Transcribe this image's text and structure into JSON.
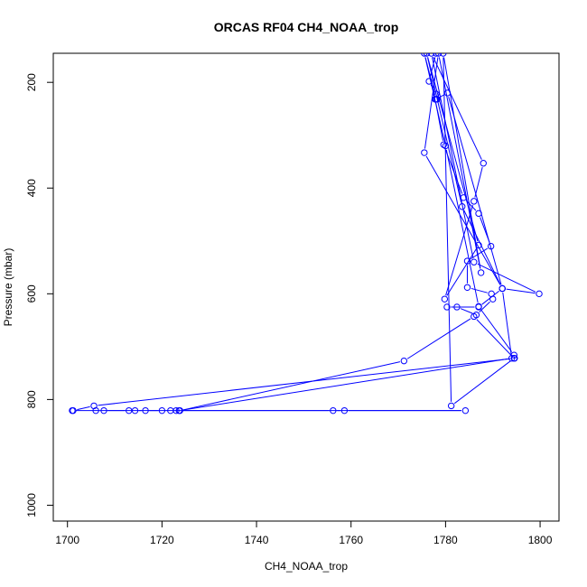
{
  "chart_data": {
    "type": "line",
    "title": "ORCAS RF04 CH4_NOAA_trop",
    "xlabel": "CH4_NOAA_trop",
    "ylabel": "Pressure (mbar)",
    "xlim": [
      1697,
      1804
    ],
    "ylim": [
      1030,
      145
    ],
    "y_reversed": true,
    "x_ticks": [
      1700,
      1720,
      1740,
      1760,
      1780,
      1800
    ],
    "y_ticks": [
      200,
      400,
      600,
      800,
      1000
    ],
    "markers": "open-circle",
    "color": "#0000ff",
    "series": [
      {
        "points": [
          [
            1778.0,
            145
          ],
          [
            1776.5,
            198
          ],
          [
            1778.0,
            222
          ],
          [
            1778.2,
            232
          ],
          [
            1777.8,
            232
          ],
          [
            1779.6,
            318
          ],
          [
            1783.8,
            418
          ],
          [
            1787.0,
            448
          ],
          [
            1789.6,
            510
          ],
          [
            1784.6,
            538
          ],
          [
            1784.6,
            588
          ],
          [
            1789.7,
            600
          ],
          [
            1790.0,
            610
          ],
          [
            1786.5,
            640
          ],
          [
            1782.4,
            625
          ],
          [
            1780.3,
            625
          ],
          [
            1787.0,
            625
          ],
          [
            1792.0,
            590
          ],
          [
            1799.8,
            600
          ],
          [
            1786.0,
            540
          ],
          [
            1777.0,
            145
          ],
          [
            1788.0,
            353
          ],
          [
            1786.0,
            425
          ],
          [
            1779.8,
            610
          ],
          [
            1787.0,
            508
          ],
          [
            1776.0,
            145
          ],
          [
            1783.5,
            435
          ],
          [
            1792.0,
            590
          ],
          [
            1780.4,
            220
          ],
          [
            1778.0,
            232
          ],
          [
            1775.5,
            145
          ],
          [
            1780.0,
            320
          ],
          [
            1787.0,
            624
          ],
          [
            1794.5,
            716
          ],
          [
            1794.6,
            722
          ],
          [
            1705.6,
            812
          ],
          [
            1701.2,
            821
          ],
          [
            1701.0,
            821
          ],
          [
            1707.7,
            821
          ],
          [
            1713.0,
            821
          ],
          [
            1714.3,
            821
          ],
          [
            1716.5,
            821
          ],
          [
            1720.0,
            821
          ],
          [
            1721.8,
            821
          ],
          [
            1723.0,
            821
          ],
          [
            1723.8,
            821
          ],
          [
            1771.2,
            727
          ],
          [
            1786.0,
            643
          ],
          [
            1794.5,
            722
          ],
          [
            1781.2,
            812
          ],
          [
            1779.5,
            145
          ],
          [
            1787.5,
            560
          ],
          [
            1778.5,
            145
          ],
          [
            1775.5,
            333
          ],
          [
            1792.0,
            590
          ],
          [
            1794.0,
            722
          ],
          [
            1723.6,
            821
          ],
          [
            1756.2,
            821
          ],
          [
            1758.6,
            821
          ],
          [
            1784.2,
            821
          ],
          [
            1706.0,
            821
          ]
        ]
      }
    ]
  }
}
